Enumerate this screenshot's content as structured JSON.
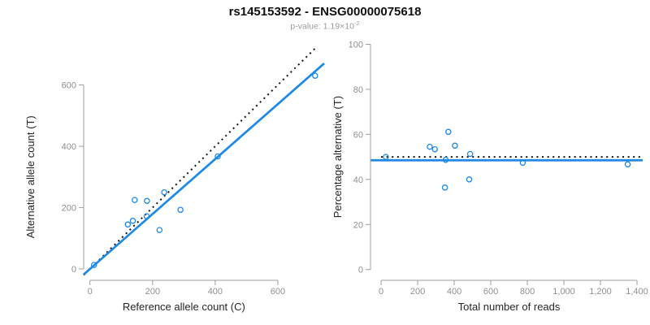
{
  "header": {
    "title": "rs145153592 - ENSG00000075618",
    "subtitle_prefix": "p-value: 1.19×10",
    "subtitle_exponent": "-2"
  },
  "colors": {
    "accent_blue": "#1E88E5",
    "dotted_black": "#111111",
    "axis_line": "#9e9e9e",
    "tick_label": "#8f8f8f",
    "axis_title": "#262626"
  },
  "chart_data": [
    {
      "type": "scatter",
      "panel": "left",
      "xlabel": "Reference allele count (C)",
      "ylabel": "Alternative allele count (T)",
      "xticks": [
        0,
        200,
        400,
        600
      ],
      "xtick_labels": [
        "0",
        "200",
        "400",
        "600"
      ],
      "yticks": [
        0,
        200,
        400,
        600
      ],
      "ytick_labels": [
        "0",
        "200",
        "400",
        "600"
      ],
      "xlim": [
        -20,
        748
      ],
      "ylim": [
        -37,
        726
      ],
      "points": [
        [
          13,
          13
        ],
        [
          121,
          145
        ],
        [
          137,
          157
        ],
        [
          143,
          225
        ],
        [
          181,
          172
        ],
        [
          182,
          222
        ],
        [
          222,
          127
        ],
        [
          237,
          250
        ],
        [
          289,
          193
        ],
        [
          408,
          367
        ],
        [
          719,
          630
        ]
      ],
      "lines": [
        {
          "name": "identity-line",
          "style": "dotted",
          "color": "#111111",
          "slope": 1,
          "intercept": 0,
          "width": 2
        },
        {
          "name": "fit-line",
          "style": "solid",
          "color": "#1E88E5",
          "slope": 0.896,
          "intercept": 0,
          "width": 2.7
        }
      ]
    },
    {
      "type": "scatter",
      "panel": "right",
      "xlabel": "Total number of reads",
      "ylabel": "Percentage alternative (T)",
      "xticks": [
        0,
        200,
        400,
        600,
        800,
        1000,
        1200,
        1400
      ],
      "xtick_labels": [
        "0",
        "200",
        "400",
        "600",
        "800",
        "1,000",
        "1,200",
        "1,400"
      ],
      "yticks": [
        0,
        20,
        40,
        60,
        80,
        100
      ],
      "ytick_labels": [
        "0",
        "20",
        "40",
        "60",
        "80",
        "100"
      ],
      "xlim": [
        -58,
        1431
      ],
      "ylim": [
        -4.8,
        103.8
      ],
      "points": [
        [
          26,
          50.0
        ],
        [
          266,
          54.5
        ],
        [
          294,
          53.4
        ],
        [
          368,
          61.1
        ],
        [
          353,
          48.7
        ],
        [
          404,
          55.0
        ],
        [
          349,
          36.4
        ],
        [
          487,
          51.3
        ],
        [
          482,
          40.0
        ],
        [
          775,
          47.4
        ],
        [
          1349,
          46.7
        ]
      ],
      "lines": [
        {
          "name": "expected-50pct-line",
          "style": "dotted",
          "color": "#111111",
          "y": 50,
          "x_start": 0,
          "width": 2
        },
        {
          "name": "observed-mean-line",
          "style": "solid",
          "color": "#1E88E5",
          "y": 48.5,
          "width": 2.7
        }
      ]
    }
  ]
}
